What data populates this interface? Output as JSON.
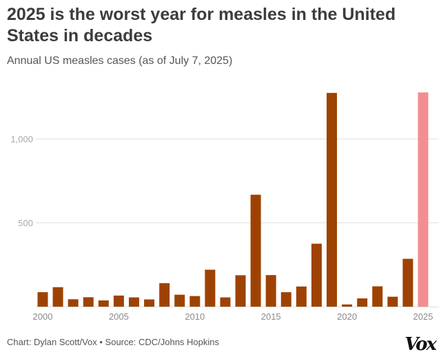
{
  "title": "2025 is the worst year for measles in the United States in decades",
  "subtitle": "Annual US measles cases (as of July 7, 2025)",
  "footer": "Chart: Dylan Scott/Vox • Source: CDC/Johns Hopkins",
  "logo": "Vox",
  "chart_data": {
    "type": "bar",
    "xlabel": "",
    "ylabel": "",
    "categories": [
      2000,
      2001,
      2002,
      2003,
      2004,
      2005,
      2006,
      2007,
      2008,
      2009,
      2010,
      2011,
      2012,
      2013,
      2014,
      2015,
      2016,
      2017,
      2018,
      2019,
      2020,
      2021,
      2022,
      2023,
      2024,
      2025
    ],
    "values": [
      86,
      116,
      44,
      56,
      37,
      66,
      55,
      43,
      140,
      71,
      63,
      220,
      55,
      187,
      667,
      188,
      86,
      120,
      375,
      1274,
      13,
      49,
      121,
      59,
      285,
      1277
    ],
    "ylim": [
      0,
      1300
    ],
    "yticks": [
      {
        "value": 500,
        "label": "500"
      },
      {
        "value": 1000,
        "label": "1,000"
      }
    ],
    "xticks": [
      "2000",
      "2005",
      "2010",
      "2015",
      "2020",
      "2025"
    ],
    "grid": true,
    "colors": {
      "default": "#9e4203",
      "highlight": "#f28e92",
      "grid": "#dddddd",
      "axis_text": "#8a8a8a"
    },
    "highlight_category": 2025
  }
}
